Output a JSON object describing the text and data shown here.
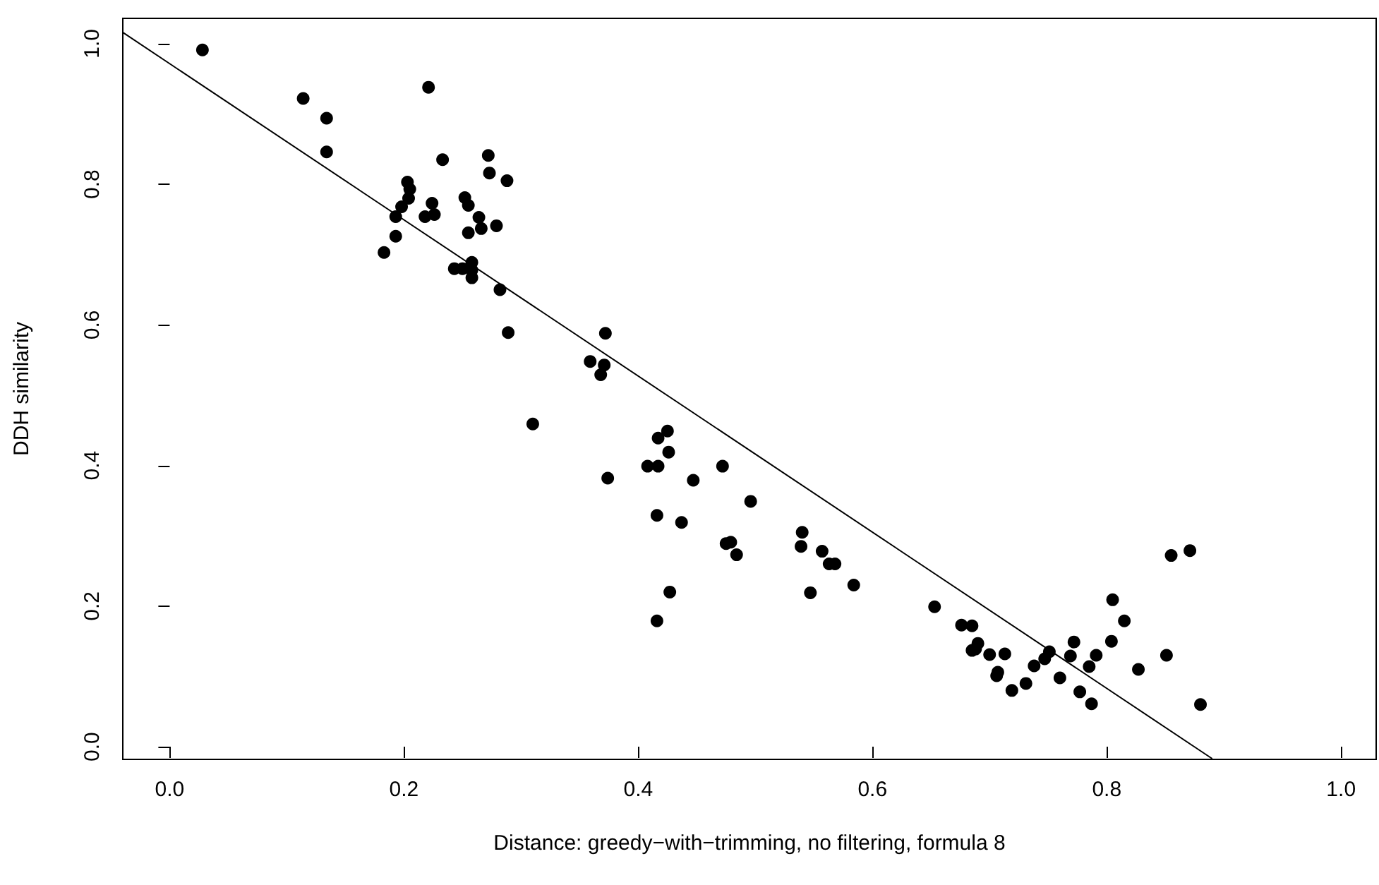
{
  "chart_data": {
    "type": "scatter",
    "xlabel": "Distance: greedy−with−trimming, no filtering, formula 8",
    "ylabel": "DDH similarity",
    "xlim": [
      -0.04,
      1.03
    ],
    "ylim": [
      -0.018,
      1.036
    ],
    "xticks": [
      {
        "value": 0,
        "label": "0.0"
      },
      0.2,
      0.4,
      0.6,
      0.8,
      {
        "value": 1,
        "label": "1.0"
      }
    ],
    "yticks": [
      {
        "value": 0,
        "label": "0.0"
      },
      0.2,
      0.4,
      0.6,
      0.8,
      {
        "value": 1,
        "label": "1.0"
      }
    ],
    "grid": false,
    "marker": "circle",
    "series": [
      {
        "color": "#000000",
        "x": [
          0.028,
          0.114,
          0.134,
          0.134,
          0.221,
          0.233,
          0.272,
          0.273,
          0.288,
          0.203,
          0.205,
          0.204,
          0.198,
          0.193,
          0.193,
          0.183,
          0.224,
          0.218,
          0.226,
          0.252,
          0.255,
          0.255,
          0.264,
          0.266,
          0.279,
          0.243,
          0.25,
          0.258,
          0.258,
          0.258,
          0.282,
          0.289,
          0.359,
          0.371,
          0.368,
          0.372,
          0.31,
          0.408,
          0.417,
          0.374,
          0.425,
          0.417,
          0.426,
          0.447,
          0.472,
          0.496,
          0.416,
          0.437,
          0.475,
          0.479,
          0.484,
          0.54,
          0.539,
          0.557,
          0.563,
          0.568,
          0.584,
          0.547,
          0.427,
          0.416,
          0.653,
          0.676,
          0.685,
          0.69,
          0.685,
          0.688,
          0.7,
          0.713,
          0.707,
          0.706,
          0.719,
          0.731,
          0.738,
          0.747,
          0.751,
          0.76,
          0.772,
          0.769,
          0.777,
          0.787,
          0.785,
          0.791,
          0.804,
          0.805,
          0.815,
          0.827,
          0.851,
          0.855,
          0.871,
          0.88
        ],
        "values": [
          0.991,
          0.922,
          0.894,
          0.846,
          0.938,
          0.835,
          0.841,
          0.816,
          0.805,
          0.803,
          0.793,
          0.78,
          0.768,
          0.754,
          0.726,
          0.703,
          0.773,
          0.754,
          0.757,
          0.781,
          0.77,
          0.731,
          0.753,
          0.737,
          0.741,
          0.68,
          0.68,
          0.689,
          0.678,
          0.667,
          0.65,
          0.589,
          0.548,
          0.543,
          0.529,
          0.588,
          0.459,
          0.399,
          0.399,
          0.382,
          0.449,
          0.439,
          0.419,
          0.379,
          0.399,
          0.349,
          0.329,
          0.319,
          0.289,
          0.291,
          0.273,
          0.305,
          0.285,
          0.278,
          0.26,
          0.26,
          0.23,
          0.219,
          0.22,
          0.179,
          0.199,
          0.173,
          0.172,
          0.147,
          0.137,
          0.139,
          0.131,
          0.132,
          0.106,
          0.101,
          0.08,
          0.09,
          0.115,
          0.125,
          0.135,
          0.098,
          0.149,
          0.129,
          0.078,
          0.061,
          0.114,
          0.13,
          0.15,
          0.209,
          0.179,
          0.11,
          0.13,
          0.272,
          0.279,
          0.06
        ]
      },
      {
        "type": "line",
        "color": "#000000",
        "marker": "none",
        "line_style": "solid",
        "x": [
          -0.04,
          0.89
        ],
        "values": [
          1.016,
          -0.017
        ]
      }
    ]
  }
}
